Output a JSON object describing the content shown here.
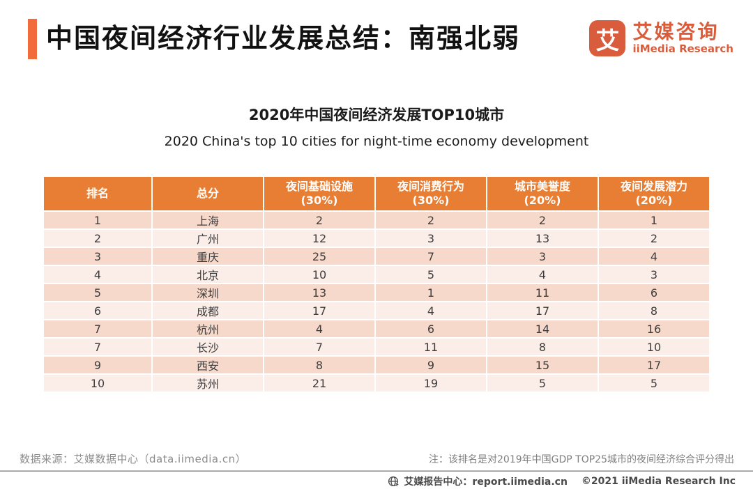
{
  "header": {
    "title": "中国夜间经济行业发展总结：南强北弱"
  },
  "logo": {
    "icon_char": "艾",
    "name_cn": "艾媒咨询",
    "name_en": "iiMedia Research"
  },
  "chart_data": {
    "type": "table",
    "title": "2020年中国夜间经济发展TOP10城市",
    "subtitle": "2020 China's top 10 cities for night-time economy development",
    "columns": [
      {
        "line1": "排名",
        "line2": ""
      },
      {
        "line1": "总分",
        "line2": ""
      },
      {
        "line1": "夜间基础设施",
        "line2": "(30%)"
      },
      {
        "line1": "夜间消费行为",
        "line2": "(30%)"
      },
      {
        "line1": "城市美誉度",
        "line2": "(20%)"
      },
      {
        "line1": "夜间发展潜力",
        "line2": "(20%)"
      }
    ],
    "rows": [
      [
        "1",
        "上海",
        "2",
        "2",
        "2",
        "1"
      ],
      [
        "2",
        "广州",
        "12",
        "3",
        "13",
        "2"
      ],
      [
        "3",
        "重庆",
        "25",
        "7",
        "3",
        "4"
      ],
      [
        "4",
        "北京",
        "10",
        "5",
        "4",
        "3"
      ],
      [
        "5",
        "深圳",
        "13",
        "1",
        "11",
        "6"
      ],
      [
        "6",
        "成都",
        "17",
        "4",
        "17",
        "8"
      ],
      [
        "7",
        "杭州",
        "4",
        "6",
        "14",
        "16"
      ],
      [
        "7",
        "长沙",
        "7",
        "11",
        "8",
        "10"
      ],
      [
        "9",
        "西安",
        "8",
        "9",
        "15",
        "17"
      ],
      [
        "10",
        "苏州",
        "21",
        "19",
        "5",
        "5"
      ]
    ]
  },
  "footer": {
    "source": "数据来源：艾媒数据中心（data.iimedia.cn）",
    "note": "注：该排名是对2019年中国GDP TOP25城市的夜间经济综合评分得出",
    "report_center": "艾媒报告中心：report.iimedia.cn",
    "copyright": "©2021  iiMedia Research Inc"
  },
  "colors": {
    "accent_bar": "#F26B3A",
    "table_header": "#E87E33",
    "row_odd": "#F6D9CB",
    "row_even": "#FBEDE7",
    "logo_brand": "#D95C3C",
    "footer_text": "#8C8C8C"
  }
}
